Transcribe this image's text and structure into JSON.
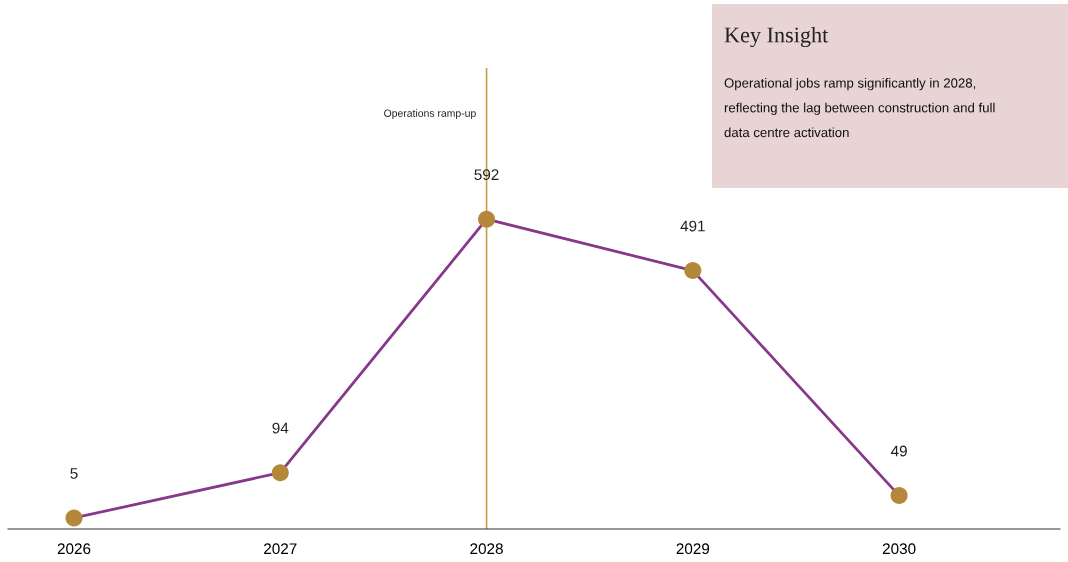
{
  "chart_data": {
    "type": "line",
    "categories": [
      "2026",
      "2027",
      "2028",
      "2029",
      "2030"
    ],
    "series": [
      {
        "color": "#86388a",
        "colors": [
          "#b5873a",
          "#b5873a",
          "#b5873a",
          "#b5873a",
          "#b5873a"
        ],
        "values": [
          5,
          94,
          592,
          491,
          49
        ]
      }
    ],
    "marker": "circle",
    "line_style": "solid",
    "data_labels": true,
    "grid": false,
    "legend": false,
    "tick_labels": "x",
    "ref_lines": [
      {
        "axis": "x",
        "value": "2028",
        "label": "Operations ramp-up",
        "color": "#c9a04a",
        "line_style": "solid"
      }
    ],
    "annotations": [
      "Key Insight",
      "Operational jobs ramp significantly in 2028, reflecting the lag between construction and full data centre activation"
    ]
  }
}
